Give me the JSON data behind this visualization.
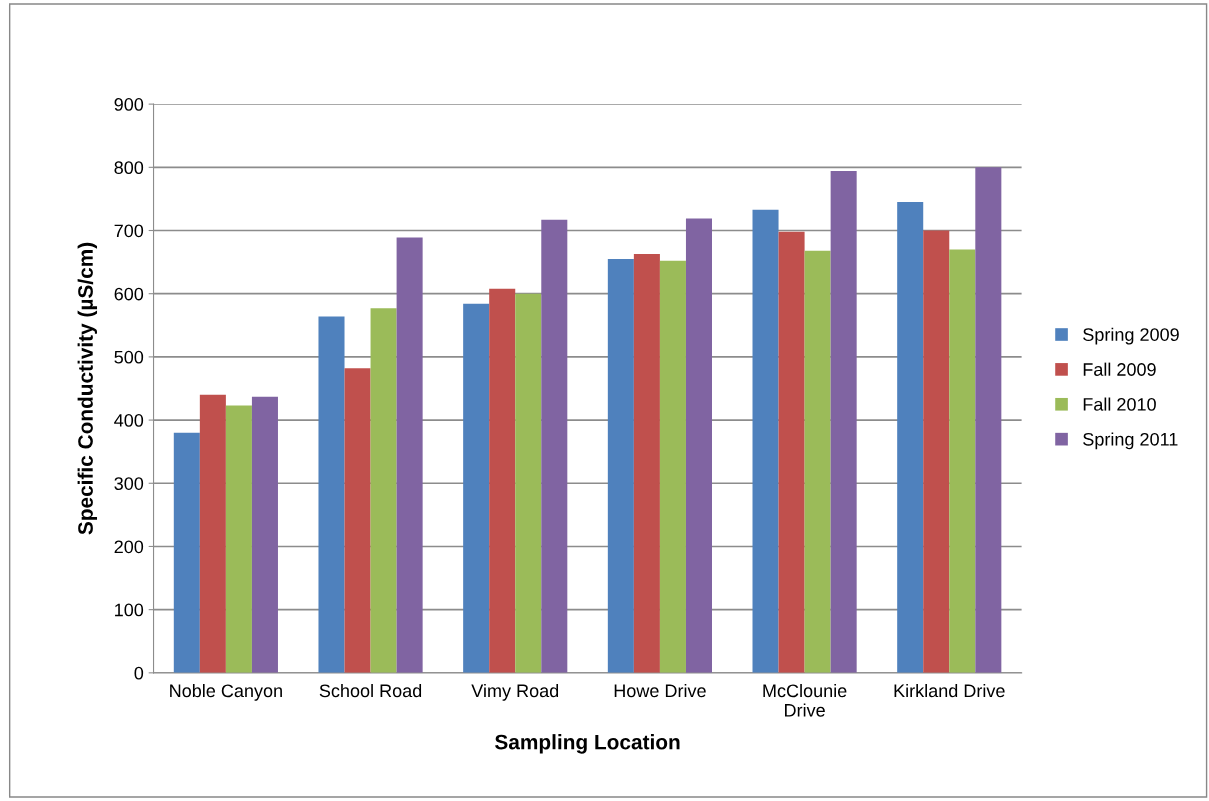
{
  "chart_data": {
    "type": "bar",
    "xlabel": "Sampling Location",
    "ylabel": "Specific Conductivity (µS/cm)",
    "categories": [
      "Noble Canyon",
      "School Road",
      "Vimy Road",
      "Howe Drive",
      "McClounie\nDrive",
      "Kirkland Drive"
    ],
    "series": [
      {
        "name": "Spring 2009",
        "color": "#4f81bd",
        "values": [
          380,
          564,
          584,
          655,
          733,
          745
        ]
      },
      {
        "name": "Fall 2009",
        "color": "#c0504d",
        "values": [
          440,
          482,
          608,
          663,
          698,
          700
        ]
      },
      {
        "name": "Fall 2010",
        "color": "#9bbb59",
        "values": [
          423,
          577,
          600,
          652,
          668,
          670
        ]
      },
      {
        "name": "Spring 2011",
        "color": "#8064a2",
        "values": [
          437,
          689,
          717,
          719,
          794,
          800
        ]
      }
    ],
    "ylim": [
      0,
      900
    ],
    "yticks": [
      0,
      100,
      200,
      300,
      400,
      500,
      600,
      700,
      800,
      900
    ],
    "grid": "y",
    "legend": "right"
  }
}
